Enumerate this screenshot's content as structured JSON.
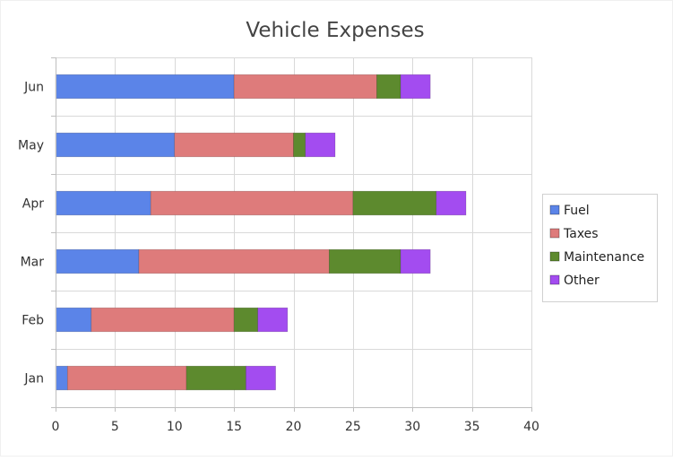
{
  "chart_data": {
    "type": "bar",
    "orientation": "horizontal",
    "stacked": true,
    "title": "Vehicle Expenses",
    "xlabel": "",
    "ylabel": "",
    "categories": [
      "Jan",
      "Feb",
      "Mar",
      "Apr",
      "May",
      "Jun"
    ],
    "series": [
      {
        "name": "Fuel",
        "color": "#5b84e8",
        "values": [
          1,
          3,
          7,
          8,
          10,
          15
        ]
      },
      {
        "name": "Taxes",
        "color": "#de7b7b",
        "values": [
          10,
          12,
          16,
          17,
          10,
          12
        ]
      },
      {
        "name": "Maintenance",
        "color": "#5d8a2e",
        "values": [
          5,
          2,
          6,
          7,
          1,
          2
        ]
      },
      {
        "name": "Other",
        "color": "#a34cf0",
        "values": [
          2.5,
          2.5,
          2.5,
          2.5,
          2.5,
          2.5
        ]
      }
    ],
    "xlim": [
      0,
      40
    ],
    "xticks": [
      "0",
      "5",
      "10",
      "15",
      "20",
      "25",
      "30",
      "35",
      "40"
    ],
    "grid": true,
    "legend_position": "right"
  }
}
